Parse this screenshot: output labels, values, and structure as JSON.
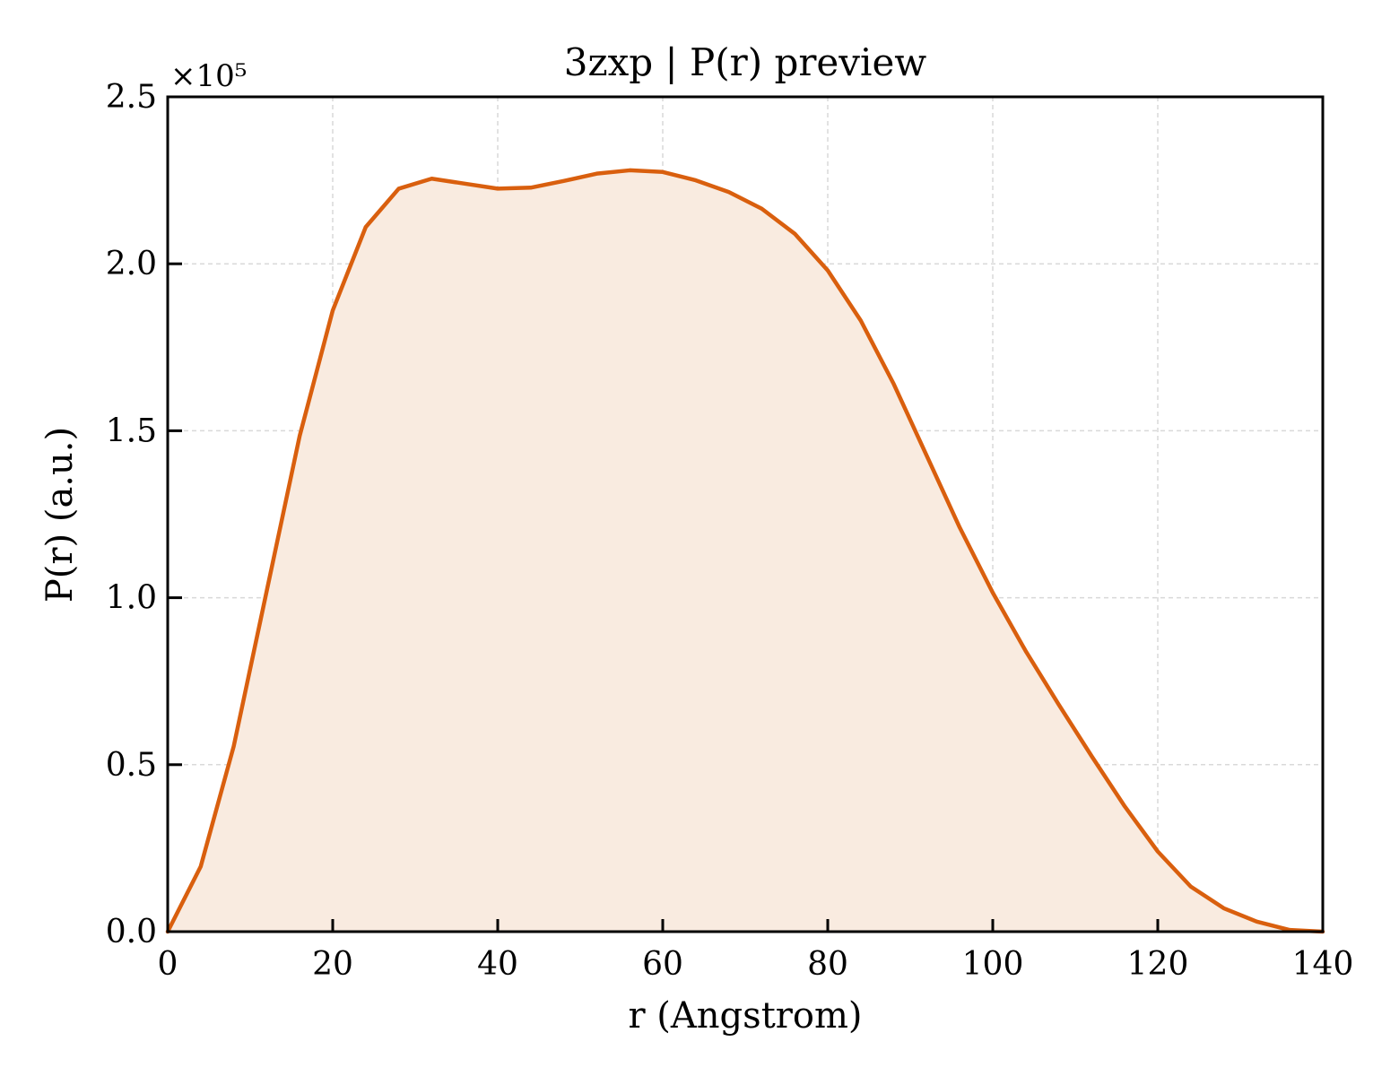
{
  "chart_data": {
    "type": "area",
    "title": "3zxp | P(r) preview",
    "xlabel": "r (Angstrom)",
    "ylabel": "P(r) (a.u.)",
    "y_multiplier_label": "×10⁵",
    "y_multiplier": 100000,
    "xlim": [
      0,
      140
    ],
    "ylim": [
      0,
      250000
    ],
    "x_ticks": [
      0,
      20,
      40,
      60,
      80,
      100,
      120,
      140
    ],
    "x_tick_labels": [
      "0",
      "20",
      "40",
      "60",
      "80",
      "100",
      "120",
      "140"
    ],
    "y_ticks": [
      0,
      50000,
      100000,
      150000,
      200000,
      250000
    ],
    "y_tick_labels": [
      "0.0",
      "0.5",
      "1.0",
      "1.5",
      "2.0",
      "2.5"
    ],
    "grid": true,
    "colors": {
      "line": "#d95f0e",
      "fill": "#f9ebe0",
      "grid": "#d9d9d9"
    },
    "series": [
      {
        "x": [
          0,
          4,
          8,
          12,
          16,
          20,
          24,
          28,
          32,
          36,
          40,
          44,
          48,
          52,
          56,
          60,
          64,
          68,
          72,
          76,
          80,
          84,
          88,
          92,
          96,
          100,
          104,
          108,
          112,
          116,
          120,
          124,
          128,
          132,
          136,
          140
        ],
        "y": [
          0,
          19500,
          55500,
          102000,
          148500,
          186000,
          211000,
          222500,
          225500,
          224000,
          222500,
          222800,
          224800,
          227000,
          228000,
          227500,
          225000,
          221500,
          216500,
          209000,
          198000,
          183000,
          164000,
          142500,
          121000,
          101500,
          84000,
          68000,
          52500,
          37500,
          24000,
          13500,
          7000,
          3000,
          500,
          0
        ]
      }
    ]
  }
}
